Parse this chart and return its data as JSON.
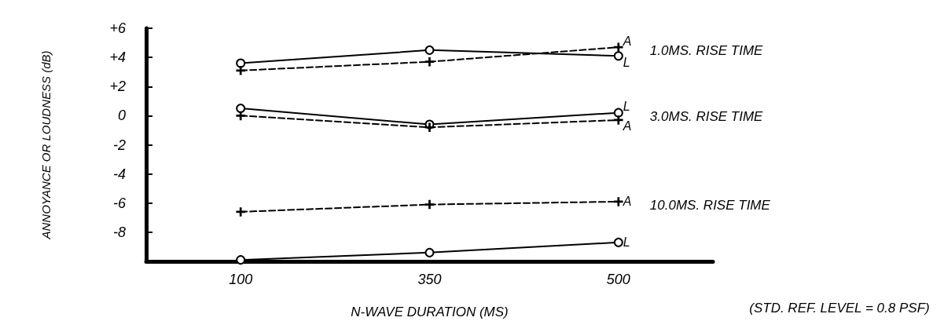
{
  "chart_data": {
    "type": "line",
    "xlabel": "N-WAVE DURATION (MS)",
    "ylabel": "ANNOYANCE OR LOUDNESS (dB)",
    "categories": [
      "100",
      "350",
      "500"
    ],
    "series": [
      {
        "name": "L",
        "color": "#000000",
        "marker": "circle",
        "line_style": "solid",
        "values": [
          3.6,
          4.5,
          4.1
        ]
      },
      {
        "name": "A",
        "color": "#000000",
        "marker": "cross",
        "line_style": "dashed",
        "values": [
          3.1,
          3.7,
          4.7
        ]
      },
      {
        "name": "L",
        "color": "#000000",
        "marker": "circle",
        "line_style": "solid",
        "values": [
          0.5,
          -0.6,
          0.2
        ]
      },
      {
        "name": "A",
        "color": "#000000",
        "marker": "cross",
        "line_style": "dashed",
        "values": [
          0,
          -0.8,
          -0.3
        ]
      },
      {
        "name": "A",
        "color": "#000000",
        "marker": "cross",
        "line_style": "dashed",
        "values": [
          -6.6,
          -6.1,
          -5.9
        ]
      },
      {
        "name": "L",
        "color": "#000000",
        "marker": "circle",
        "line_style": "solid",
        "values": [
          -9.9,
          -9.4,
          -8.7
        ]
      }
    ],
    "ylim": [
      -10,
      6
    ],
    "yticks": [
      {
        "value": 6,
        "label": "+6"
      },
      {
        "value": 4,
        "label": "+4"
      },
      {
        "value": 2,
        "label": "+2"
      },
      0,
      -2,
      -4,
      -6,
      -8
    ],
    "annotations": [
      {
        "text": "1.0MS. RISE TIME",
        "x": "500",
        "y": 4.7
      },
      {
        "text": "3.0MS. RISE TIME",
        "x": "500",
        "y": 0.2
      },
      {
        "text": "10.0MS. RISE TIME",
        "x": "500",
        "y": -5.9
      },
      "(STD. REF. LEVEL = 0.8 PSF)"
    ],
    "grid": false,
    "legend": false
  }
}
